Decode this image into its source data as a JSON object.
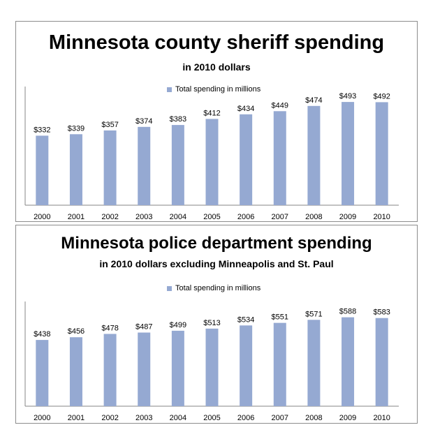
{
  "chart_data": [
    {
      "type": "bar",
      "title": "Minnesota county sheriff spending",
      "subtitle": "in 2010 dollars",
      "legend": "Total spending in millions",
      "categories": [
        "2000",
        "2001",
        "2002",
        "2003",
        "2004",
        "2005",
        "2006",
        "2007",
        "2008",
        "2009",
        "2010"
      ],
      "values": [
        332,
        339,
        357,
        374,
        383,
        412,
        434,
        449,
        474,
        493,
        492
      ],
      "data_labels": [
        "$332",
        "$339",
        "$357",
        "$374",
        "$383",
        "$412",
        "$434",
        "$449",
        "$474",
        "$493",
        "$492"
      ],
      "ylim": [
        0,
        500
      ],
      "color": "#95a9d2"
    },
    {
      "type": "bar",
      "title": "Minnesota police department spending",
      "subtitle": "in 2010 dollars excluding Minneapolis and St. Paul",
      "legend": "Total spending in millions",
      "categories": [
        "2000",
        "2001",
        "2002",
        "2003",
        "2004",
        "2005",
        "2006",
        "2007",
        "2008",
        "2009",
        "2010"
      ],
      "values": [
        438,
        456,
        478,
        487,
        499,
        513,
        534,
        551,
        571,
        588,
        583
      ],
      "data_labels": [
        "$438",
        "$456",
        "$478",
        "$487",
        "$499",
        "$513",
        "$534",
        "$551",
        "$571",
        "$588",
        "$583"
      ],
      "ylim": [
        0,
        600
      ],
      "color": "#95a9d2"
    }
  ]
}
